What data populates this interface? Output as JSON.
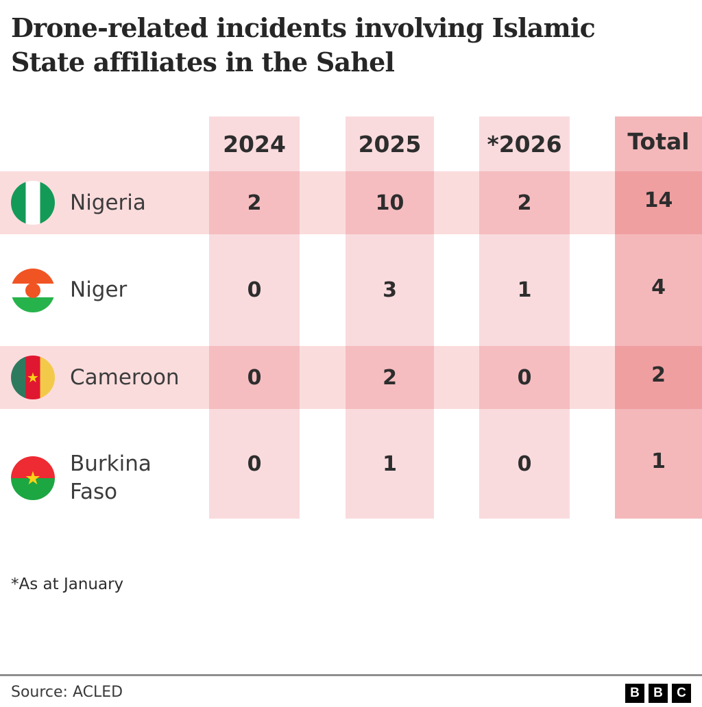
{
  "chart_data": {
    "type": "table",
    "title": "Drone-related incidents involving Islamic State affiliates in the Sahel",
    "columns": [
      "2024",
      "2025",
      "*2026",
      "Total"
    ],
    "rows": [
      {
        "country": "Nigeria",
        "flag": "nigeria-flag",
        "values": [
          "2",
          "10",
          "2",
          "14"
        ]
      },
      {
        "country": "Niger",
        "flag": "niger-flag",
        "values": [
          "0",
          "3",
          "1",
          "4"
        ]
      },
      {
        "country": "Cameroon",
        "flag": "cameroon-flag",
        "values": [
          "0",
          "2",
          "0",
          "2"
        ]
      },
      {
        "country": "Burkina Faso",
        "flag": "burkina-faso-flag",
        "values": [
          "0",
          "1",
          "0",
          "1"
        ]
      }
    ],
    "footnote": "*As at January",
    "source": "Source: ACLED",
    "layout": {
      "legend": "none",
      "grid": "off",
      "highlighted_rows": [
        0,
        2
      ]
    },
    "colors": {
      "column_band": "#f9dbde",
      "total_band": "#f4b8ba",
      "row_stripe": "#fbdcdd",
      "text": "#2d2d2d"
    }
  },
  "logo": {
    "blocks": [
      "B",
      "B",
      "C"
    ]
  }
}
